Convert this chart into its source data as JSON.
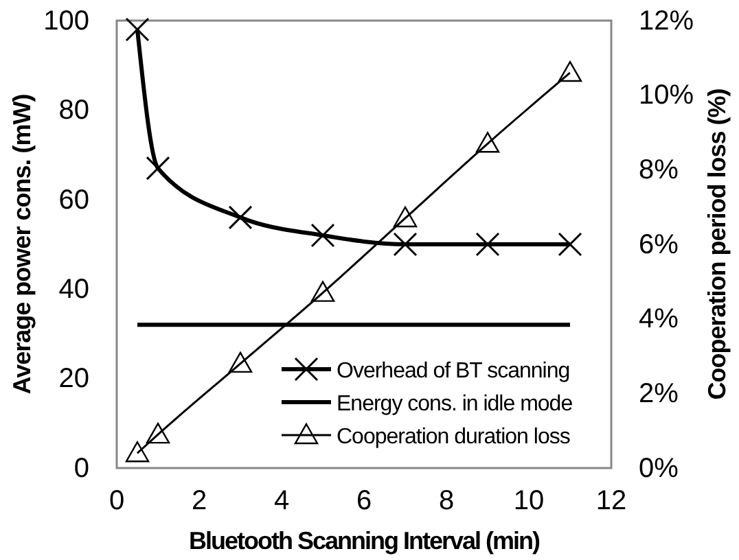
{
  "chart_data": {
    "type": "line",
    "xlabel": "Bluetooth Scanning Interval (min)",
    "ylabel": "Average power cons. (mW)",
    "y2label": "Cooperation period loss (%)",
    "xlim": [
      0,
      12
    ],
    "xticks": [
      0,
      2,
      4,
      6,
      8,
      10,
      12
    ],
    "ylim": [
      0,
      100
    ],
    "yticks": [
      0,
      20,
      40,
      60,
      80,
      100
    ],
    "y2lim": [
      0,
      12
    ],
    "y2ticks": [
      {
        "value": 0,
        "label": "0%"
      },
      {
        "value": 2,
        "label": "2%"
      },
      {
        "value": 4,
        "label": "4%"
      },
      {
        "value": 6,
        "label": "6%"
      },
      {
        "value": 8,
        "label": "8%"
      },
      {
        "value": 10,
        "label": "10%"
      },
      {
        "value": 12,
        "label": "12%"
      }
    ],
    "grid": false,
    "legend": "bottom right",
    "series": [
      {
        "name": "Overhead of BT scanning",
        "color": "#000000",
        "marker": "cross",
        "x": [
          0.5,
          1,
          3,
          5,
          7,
          9,
          11
        ],
        "values": [
          98,
          67,
          56,
          52,
          50,
          50,
          50
        ]
      },
      {
        "name": "Energy cons. in idle mode",
        "color": "#000000",
        "marker": "none",
        "x": [
          0.5,
          11
        ],
        "values": [
          32,
          32
        ]
      },
      {
        "name": "Cooperation duration loss",
        "color": "#000000",
        "marker": "triangle",
        "axis": "y2",
        "x": [
          0.5,
          1,
          3,
          5,
          7,
          9,
          11
        ],
        "values": [
          0.4,
          0.9,
          2.8,
          4.7,
          6.7,
          8.7,
          10.6
        ]
      }
    ]
  }
}
